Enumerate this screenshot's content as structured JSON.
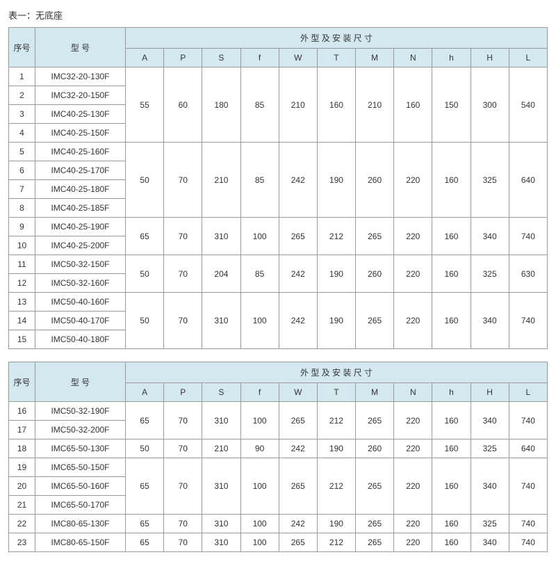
{
  "title": "表一：无底座",
  "header": {
    "seq": "序号",
    "model": "型 号",
    "dims_title": "外 型 及 安 装 尺 寸",
    "cols": [
      "A",
      "P",
      "S",
      "f",
      "W",
      "T",
      "M",
      "N",
      "h",
      "H",
      "L"
    ]
  },
  "colors": {
    "header_bg": "#d4e9ef",
    "border": "#999999",
    "text": "#333333",
    "background": "#ffffff"
  },
  "fontsize": 12,
  "table1": {
    "groups": [
      {
        "rows": [
          {
            "seq": "1",
            "model": "IMC32-20-130F"
          },
          {
            "seq": "2",
            "model": "IMC32-20-150F"
          },
          {
            "seq": "3",
            "model": "IMC40-25-130F"
          },
          {
            "seq": "4",
            "model": "IMC40-25-150F"
          }
        ],
        "dims": [
          "55",
          "60",
          "180",
          "85",
          "210",
          "160",
          "210",
          "160",
          "150",
          "300",
          "540"
        ]
      },
      {
        "rows": [
          {
            "seq": "5",
            "model": "IMC40-25-160F"
          },
          {
            "seq": "6",
            "model": "IMC40-25-170F"
          },
          {
            "seq": "7",
            "model": "IMC40-25-180F"
          },
          {
            "seq": "8",
            "model": "IMC40-25-185F"
          }
        ],
        "dims": [
          "50",
          "70",
          "210",
          "85",
          "242",
          "190",
          "260",
          "220",
          "160",
          "325",
          "640"
        ]
      },
      {
        "rows": [
          {
            "seq": "9",
            "model": "IMC40-25-190F"
          },
          {
            "seq": "10",
            "model": "IMC40-25-200F"
          }
        ],
        "dims": [
          "65",
          "70",
          "310",
          "100",
          "265",
          "212",
          "265",
          "220",
          "160",
          "340",
          "740"
        ]
      },
      {
        "rows": [
          {
            "seq": "11",
            "model": "IMC50-32-150F"
          },
          {
            "seq": "12",
            "model": "IMC50-32-160F"
          }
        ],
        "dims": [
          "50",
          "70",
          "204",
          "85",
          "242",
          "190",
          "260",
          "220",
          "160",
          "325",
          "630"
        ]
      },
      {
        "rows": [
          {
            "seq": "13",
            "model": "IMC50-40-160F"
          },
          {
            "seq": "14",
            "model": "IMC50-40-170F"
          },
          {
            "seq": "15",
            "model": "IMC50-40-180F"
          }
        ],
        "dims": [
          "50",
          "70",
          "310",
          "100",
          "242",
          "190",
          "265",
          "220",
          "160",
          "340",
          "740"
        ]
      }
    ]
  },
  "table2": {
    "groups": [
      {
        "rows": [
          {
            "seq": "16",
            "model": "IMC50-32-190F"
          },
          {
            "seq": "17",
            "model": "IMC50-32-200F"
          }
        ],
        "dims": [
          "65",
          "70",
          "310",
          "100",
          "265",
          "212",
          "265",
          "220",
          "160",
          "340",
          "740"
        ]
      },
      {
        "rows": [
          {
            "seq": "18",
            "model": "IMC65-50-130F"
          }
        ],
        "dims": [
          "50",
          "70",
          "210",
          "90",
          "242",
          "190",
          "260",
          "220",
          "160",
          "325",
          "640"
        ]
      },
      {
        "rows": [
          {
            "seq": "19",
            "model": "IMC65-50-150F"
          },
          {
            "seq": "20",
            "model": "IMC65-50-160F"
          },
          {
            "seq": "21",
            "model": "IMC65-50-170F"
          }
        ],
        "dims": [
          "65",
          "70",
          "310",
          "100",
          "265",
          "212",
          "265",
          "220",
          "160",
          "340",
          "740"
        ]
      },
      {
        "rows": [
          {
            "seq": "22",
            "model": "IMC80-65-130F"
          }
        ],
        "dims": [
          "65",
          "70",
          "310",
          "100",
          "242",
          "190",
          "265",
          "220",
          "160",
          "325",
          "740"
        ]
      },
      {
        "rows": [
          {
            "seq": "23",
            "model": "IMC80-65-150F"
          }
        ],
        "dims": [
          "65",
          "70",
          "310",
          "100",
          "265",
          "212",
          "265",
          "220",
          "160",
          "340",
          "740"
        ]
      }
    ]
  }
}
